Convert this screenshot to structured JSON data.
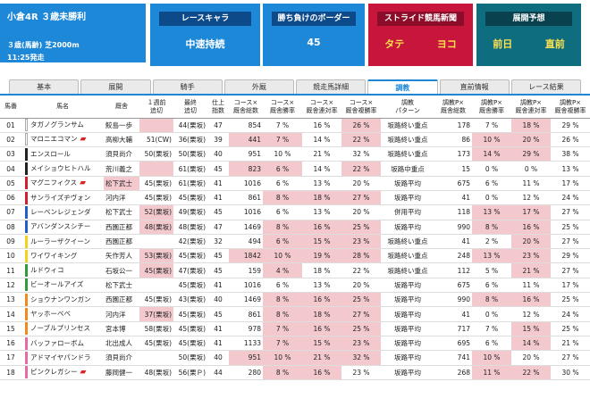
{
  "race": {
    "title": "小倉4R ３歳未勝利",
    "condition": "３歳(馬齢)  芝2000m",
    "start": "11:25発走"
  },
  "cards": {
    "race_chara": {
      "header": "レースキャラ",
      "value": "中速持続"
    },
    "border": {
      "header": "勝ち負けのボーダー",
      "value": "45"
    },
    "stride": {
      "header": "ストライド競馬新聞",
      "left": "タテ",
      "right": "ヨコ"
    },
    "forecast": {
      "header": "展開予想",
      "left": "前日",
      "right": "直前"
    }
  },
  "tabs": [
    "基本",
    "展開",
    "騎手",
    "外厩",
    "競走馬詳細",
    "調教",
    "直前情報",
    "レース結果"
  ],
  "active_tab": "調教",
  "headers": [
    "馬番",
    "馬名",
    "厩舎",
    "１週前\n追切",
    "最終\n追切",
    "仕上\n指数",
    "コース×\n厩舎総数",
    "コース×\n厩舎勝率",
    "コース×\n厩舎連対率",
    "コース×\n厩舎複勝率",
    "調教\nパターン",
    "調教P×\n厩舎総数",
    "調教P×\n厩舎勝率",
    "調教P×\n厩舎連対率",
    "調教P×\n厩舎複勝率"
  ],
  "colors": {
    "accent": "#1e88d8",
    "red": "#c8153b",
    "teal": "#0f6d80",
    "pink": "#f3c9ce"
  },
  "rows": [
    {
      "no": "01",
      "color": "#ffffff",
      "name": "タガノグランサム",
      "icon": false,
      "trainer": "鮫島一歩",
      "w1": "",
      "w2": "44(栗坂)",
      "idx": "47",
      "n1": "854",
      "p1": "7 %",
      "p2": "16 %",
      "p3": "26 %",
      "pat": "坂路終い重点",
      "n2": "178",
      "q1": "7 %",
      "q2": "18 %",
      "q3": "29 %",
      "hl": [
        3,
        9,
        13
      ]
    },
    {
      "no": "02",
      "color": "#ffffff",
      "name": "マロニエコマン",
      "icon": true,
      "trainer": "高柳大輔",
      "w1": "51(CW)",
      "w2": "36(栗坂)",
      "idx": "39",
      "n1": "441",
      "p1": "7 %",
      "p2": "14 %",
      "p3": "22 %",
      "pat": "坂路終い重点",
      "n2": "86",
      "q1": "10 %",
      "q2": "20 %",
      "q3": "26 %",
      "hl": [
        6,
        7,
        9,
        12,
        13
      ]
    },
    {
      "no": "03",
      "color": "#222222",
      "name": "エンスロール",
      "icon": false,
      "trainer": "須貝尚介",
      "w1": "50(栗坂)",
      "w2": "50(栗坂)",
      "idx": "40",
      "n1": "951",
      "p1": "10 %",
      "p2": "21 %",
      "p3": "32 %",
      "pat": "坂路終い重点",
      "n2": "173",
      "q1": "14 %",
      "q2": "29 %",
      "q3": "38 %",
      "hl": [
        12,
        13
      ]
    },
    {
      "no": "04",
      "color": "#222222",
      "name": "メイショウヒトハル",
      "icon": false,
      "trainer": "荒川義之",
      "w1": "",
      "w2": "61(栗坂)",
      "idx": "45",
      "n1": "823",
      "p1": "6 %",
      "p2": "14 %",
      "p3": "22 %",
      "pat": "坂路中重点",
      "n2": "15",
      "q1": "0 %",
      "q2": "0 %",
      "q3": "13 %",
      "hl": [
        3,
        6,
        7,
        9
      ]
    },
    {
      "no": "05",
      "color": "#d21f2e",
      "name": "マグニフィクス",
      "icon": true,
      "trainer": "松下武士",
      "w1": "45(栗坂)",
      "w2": "61(栗坂)",
      "idx": "41",
      "n1": "1016",
      "p1": "6 %",
      "p2": "13 %",
      "p3": "20 %",
      "pat": "坂路平均",
      "n2": "675",
      "q1": "6 %",
      "q2": "11 %",
      "q3": "17 %",
      "hl": [
        2
      ]
    },
    {
      "no": "06",
      "color": "#d21f2e",
      "name": "サンライズヂヴォン",
      "icon": false,
      "trainer": "河内洋",
      "w1": "45(栗坂)",
      "w2": "45(栗坂)",
      "idx": "41",
      "n1": "861",
      "p1": "8 %",
      "p2": "18 %",
      "p3": "27 %",
      "pat": "坂路平均",
      "n2": "41",
      "q1": "0 %",
      "q2": "12 %",
      "q3": "24 %",
      "hl": [
        7,
        8,
        9
      ]
    },
    {
      "no": "07",
      "color": "#1f5fc9",
      "name": "レーベンレジェンダ",
      "icon": false,
      "trainer": "松下武士",
      "w1": "52(栗坂)",
      "w2": "49(栗坂)",
      "idx": "45",
      "n1": "1016",
      "p1": "6 %",
      "p2": "13 %",
      "p3": "20 %",
      "pat": "併用平均",
      "n2": "118",
      "q1": "13 %",
      "q2": "17 %",
      "q3": "27 %",
      "hl": [
        3,
        12,
        13
      ]
    },
    {
      "no": "08",
      "color": "#1f5fc9",
      "name": "アバンダンスシチー",
      "icon": false,
      "trainer": "西園正都",
      "w1": "48(栗坂)",
      "w2": "48(栗坂)",
      "idx": "47",
      "n1": "1469",
      "p1": "8 %",
      "p2": "16 %",
      "p3": "25 %",
      "pat": "坂路平均",
      "n2": "990",
      "q1": "8 %",
      "q2": "16 %",
      "q3": "25 %",
      "hl": [
        3,
        7,
        8,
        9,
        12,
        13
      ]
    },
    {
      "no": "09",
      "color": "#f2d21a",
      "name": "ルーラーザクイーン",
      "icon": false,
      "trainer": "西園正都",
      "w1": "",
      "w2": "42(栗坂)",
      "idx": "32",
      "n1": "494",
      "p1": "6 %",
      "p2": "15 %",
      "p3": "23 %",
      "pat": "坂路終い重点",
      "n2": "41",
      "q1": "2 %",
      "q2": "20 %",
      "q3": "27 %",
      "hl": [
        7,
        8,
        9,
        13
      ]
    },
    {
      "no": "10",
      "color": "#f2d21a",
      "name": "ワイワイキング",
      "icon": false,
      "trainer": "矢作芳人",
      "w1": "53(栗坂)",
      "w2": "45(栗坂)",
      "idx": "45",
      "n1": "1842",
      "p1": "10 %",
      "p2": "19 %",
      "p3": "28 %",
      "pat": "坂路終い重点",
      "n2": "248",
      "q1": "13 %",
      "q2": "23 %",
      "q3": "29 %",
      "hl": [
        3,
        6,
        7,
        8,
        9,
        12,
        13
      ]
    },
    {
      "no": "11",
      "color": "#2e9c3a",
      "name": "ルドウィコ",
      "icon": false,
      "trainer": "石坂公一",
      "w1": "45(栗坂)",
      "w2": "47(栗坂)",
      "idx": "45",
      "n1": "159",
      "p1": "4 %",
      "p2": "18 %",
      "p3": "22 %",
      "pat": "坂路終い重点",
      "n2": "112",
      "q1": "5 %",
      "q2": "21 %",
      "q3": "27 %",
      "hl": [
        3,
        7,
        13
      ]
    },
    {
      "no": "12",
      "color": "#2e9c3a",
      "name": "ビーオールアイズ",
      "icon": false,
      "trainer": "松下武士",
      "w1": "",
      "w2": "45(栗坂)",
      "idx": "41",
      "n1": "1016",
      "p1": "6 %",
      "p2": "13 %",
      "p3": "20 %",
      "pat": "坂路平均",
      "n2": "675",
      "q1": "6 %",
      "q2": "11 %",
      "q3": "17 %",
      "hl": []
    },
    {
      "no": "13",
      "color": "#f08a1c",
      "name": "ショウナンワンガン",
      "icon": false,
      "trainer": "西園正都",
      "w1": "45(栗坂)",
      "w2": "43(栗坂)",
      "idx": "40",
      "n1": "1469",
      "p1": "8 %",
      "p2": "16 %",
      "p3": "25 %",
      "pat": "坂路平均",
      "n2": "990",
      "q1": "8 %",
      "q2": "16 %",
      "q3": "25 %",
      "hl": [
        7,
        8,
        9,
        12,
        13
      ]
    },
    {
      "no": "14",
      "color": "#f08a1c",
      "name": "ヤッホーベベ",
      "icon": false,
      "trainer": "河内洋",
      "w1": "37(栗坂)",
      "w2": "45(栗坂)",
      "idx": "45",
      "n1": "861",
      "p1": "8 %",
      "p2": "18 %",
      "p3": "27 %",
      "pat": "坂路平均",
      "n2": "41",
      "q1": "0 %",
      "q2": "12 %",
      "q3": "24 %",
      "hl": [
        3,
        7,
        8,
        9
      ]
    },
    {
      "no": "15",
      "color": "#f08a1c",
      "name": "ノーブルプリンセス",
      "icon": false,
      "trainer": "宮本博",
      "w1": "58(栗坂)",
      "w2": "45(栗坂)",
      "idx": "41",
      "n1": "978",
      "p1": "7 %",
      "p2": "16 %",
      "p3": "25 %",
      "pat": "坂路平均",
      "n2": "717",
      "q1": "7 %",
      "q2": "15 %",
      "q3": "25 %",
      "hl": [
        7,
        8,
        9,
        13
      ]
    },
    {
      "no": "16",
      "color": "#e86aa4",
      "name": "バッファローボム",
      "icon": false,
      "trainer": "北出成人",
      "w1": "45(栗坂)",
      "w2": "45(栗坂)",
      "idx": "41",
      "n1": "1133",
      "p1": "7 %",
      "p2": "15 %",
      "p3": "23 %",
      "pat": "坂路平均",
      "n2": "695",
      "q1": "6 %",
      "q2": "14 %",
      "q3": "21 %",
      "hl": [
        7,
        8,
        9,
        13
      ]
    },
    {
      "no": "17",
      "color": "#e86aa4",
      "name": "アドマイヤパンドラ",
      "icon": false,
      "trainer": "須貝尚介",
      "w1": "",
      "w2": "50(栗坂)",
      "idx": "40",
      "n1": "951",
      "p1": "10 %",
      "p2": "21 %",
      "p3": "32 %",
      "pat": "坂路平均",
      "n2": "741",
      "q1": "10 %",
      "q2": "20 %",
      "q3": "27 %",
      "hl": [
        6,
        7,
        8,
        9,
        12
      ]
    },
    {
      "no": "18",
      "color": "#e86aa4",
      "name": "ピンクレガシー",
      "icon": true,
      "trainer": "藤岡健一",
      "w1": "48(栗坂)",
      "w2": "56(栗Ｐ)",
      "idx": "44",
      "n1": "280",
      "p1": "8 %",
      "p2": "16 %",
      "p3": "23 %",
      "pat": "坂路平均",
      "n2": "268",
      "q1": "11 %",
      "q2": "22 %",
      "q3": "30 %",
      "hl": [
        7,
        8,
        12,
        13
      ]
    }
  ]
}
